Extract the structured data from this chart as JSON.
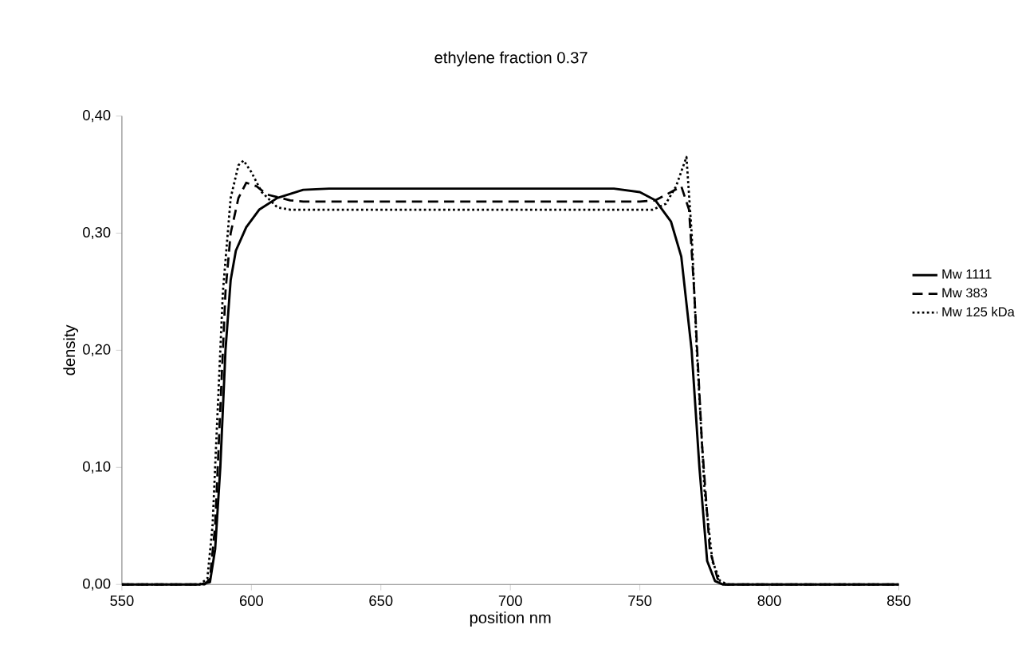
{
  "chart_data": {
    "type": "line",
    "title": "ethylene fraction 0.37",
    "xlabel": "position nm",
    "ylabel": "density",
    "xlim": [
      550,
      850
    ],
    "xticks": [
      550,
      600,
      650,
      700,
      750,
      800,
      850
    ],
    "ylim": [
      0,
      0.4
    ],
    "yticks": [
      {
        "value": 0,
        "label": "0,00"
      },
      {
        "value": 0.1,
        "label": "0,10"
      },
      {
        "value": 0.2,
        "label": "0,20"
      },
      {
        "value": 0.3,
        "label": "0,30"
      },
      {
        "value": 0.4,
        "label": "0,40"
      }
    ],
    "grid": false,
    "legend": "right",
    "marker": "none",
    "series": [
      {
        "name": "Mw 1111",
        "color": "#000000",
        "line_style": "solid",
        "x": [
          550,
          580,
          584,
          586,
          588,
          590,
          592,
          594,
          598,
          603,
          610,
          620,
          630,
          740,
          750,
          756,
          762,
          766,
          770,
          773,
          776,
          779,
          782,
          850
        ],
        "values": [
          0,
          0,
          0.002,
          0.03,
          0.1,
          0.2,
          0.26,
          0.285,
          0.305,
          0.32,
          0.33,
          0.337,
          0.338,
          0.338,
          0.335,
          0.328,
          0.31,
          0.28,
          0.2,
          0.1,
          0.02,
          0.003,
          0,
          0
        ]
      },
      {
        "name": "Mw 383",
        "color": "#000000",
        "line_style": "dashed",
        "x": [
          550,
          582,
          584,
          586,
          588,
          590,
          592,
          595,
          598,
          602,
          606,
          615,
          620,
          750,
          756,
          762,
          766,
          769,
          771,
          774,
          777,
          780,
          783,
          850
        ],
        "values": [
          0,
          0,
          0.005,
          0.05,
          0.15,
          0.25,
          0.3,
          0.33,
          0.343,
          0.34,
          0.333,
          0.328,
          0.327,
          0.327,
          0.328,
          0.335,
          0.34,
          0.32,
          0.25,
          0.12,
          0.03,
          0.005,
          0,
          0
        ]
      },
      {
        "name": "Mw 125 kDa",
        "color": "#000000",
        "line_style": "dotted",
        "x": [
          550,
          580,
          583,
          585,
          587,
          589,
          592,
          595,
          597,
          600,
          604,
          610,
          615,
          755,
          760,
          764,
          768,
          770,
          772,
          775,
          778,
          781,
          784,
          850
        ],
        "values": [
          0,
          0,
          0.005,
          0.05,
          0.15,
          0.25,
          0.33,
          0.358,
          0.362,
          0.352,
          0.335,
          0.322,
          0.32,
          0.32,
          0.325,
          0.34,
          0.365,
          0.3,
          0.2,
          0.08,
          0.02,
          0.003,
          0,
          0
        ]
      }
    ]
  }
}
